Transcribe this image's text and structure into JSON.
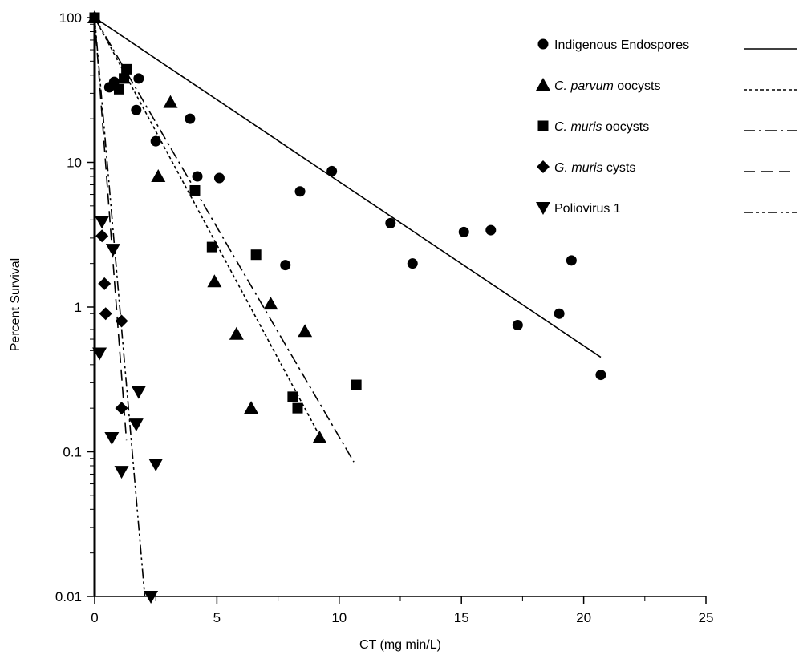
{
  "chart_data": {
    "type": "scatter",
    "xlabel": "CT (mg min/L)",
    "ylabel": "Percent Survival",
    "xlim": [
      0,
      25
    ],
    "ylim": [
      0.01,
      100
    ],
    "yscale": "log",
    "xticks": [
      "0",
      "5",
      "10",
      "15",
      "20",
      "25"
    ],
    "yticks": [
      "0.01",
      "0.1",
      "1",
      "10",
      "100"
    ],
    "legend_position": "top-right",
    "series": [
      {
        "name": "Indigenous Endospores",
        "name_parts": [
          {
            "t": "Indigenous Endospores",
            "i": false
          }
        ],
        "marker": "circle",
        "line_style": "solid",
        "points": [
          [
            0.6,
            33
          ],
          [
            0.8,
            36
          ],
          [
            1.7,
            23
          ],
          [
            1.8,
            38
          ],
          [
            2.5,
            14
          ],
          [
            3.9,
            20
          ],
          [
            4.2,
            8
          ],
          [
            5.1,
            7.8
          ],
          [
            8.4,
            6.3
          ],
          [
            9.7,
            8.7
          ],
          [
            7.8,
            1.95
          ],
          [
            12.1,
            3.8
          ],
          [
            13,
            2
          ],
          [
            15.1,
            3.3
          ],
          [
            16.2,
            3.4
          ],
          [
            17.3,
            0.75
          ],
          [
            19,
            0.9
          ],
          [
            19.5,
            2.1
          ],
          [
            20.7,
            0.34
          ]
        ],
        "fit_line": [
          [
            0,
            100
          ],
          [
            20.7,
            0.45
          ]
        ]
      },
      {
        "name": "C. parvum oocysts",
        "name_parts": [
          {
            "t": "C. parvum",
            "i": true
          },
          {
            "t": " oocysts",
            "i": false
          }
        ],
        "marker": "triangle-up",
        "line_style": "dotted",
        "points": [
          [
            0,
            100
          ],
          [
            3.1,
            26
          ],
          [
            2.6,
            8
          ],
          [
            4.9,
            1.5
          ],
          [
            5.8,
            0.65
          ],
          [
            6.4,
            0.2
          ],
          [
            7.2,
            1.05
          ],
          [
            8.6,
            0.68
          ],
          [
            9.2,
            0.125
          ]
        ],
        "fit_line": [
          [
            0,
            100
          ],
          [
            9.3,
            0.12
          ]
        ]
      },
      {
        "name": "C. muris oocysts",
        "name_parts": [
          {
            "t": "C. muris",
            "i": true
          },
          {
            "t": " oocysts",
            "i": false
          }
        ],
        "marker": "square",
        "line_style": "dash-dot",
        "points": [
          [
            0,
            100
          ],
          [
            1,
            32
          ],
          [
            1.2,
            38
          ],
          [
            1.3,
            44
          ],
          [
            4.1,
            6.4
          ],
          [
            4.8,
            2.6
          ],
          [
            6.6,
            2.3
          ],
          [
            8.1,
            0.24
          ],
          [
            8.3,
            0.2
          ],
          [
            10.7,
            0.29
          ]
        ],
        "fit_line": [
          [
            0,
            100
          ],
          [
            10.6,
            0.085
          ]
        ]
      },
      {
        "name": "G. muris cysts",
        "name_parts": [
          {
            "t": "G. muris",
            "i": true
          },
          {
            "t": " cysts",
            "i": false
          }
        ],
        "marker": "diamond",
        "line_style": "dashed",
        "points": [
          [
            0.3,
            3.1
          ],
          [
            0.4,
            1.45
          ],
          [
            0.45,
            0.9
          ],
          [
            1.1,
            0.8
          ],
          [
            1.1,
            0.2
          ]
        ],
        "fit_line": [
          [
            0,
            100
          ],
          [
            1.3,
            0.12
          ]
        ]
      },
      {
        "name": "Poliovirus 1",
        "name_parts": [
          {
            "t": "Poliovirus 1",
            "i": false
          }
        ],
        "marker": "triangle-down",
        "line_style": "dash-dot-dot",
        "points": [
          [
            0.2,
            0.48
          ],
          [
            0.3,
            3.9
          ],
          [
            0.7,
            0.125
          ],
          [
            0.75,
            2.5
          ],
          [
            1.1,
            0.073
          ],
          [
            1.7,
            0.155
          ],
          [
            1.8,
            0.26
          ],
          [
            2.3,
            0.01
          ],
          [
            2.5,
            0.082
          ]
        ],
        "fit_line": [
          [
            0,
            100
          ],
          [
            2.05,
            0.01
          ]
        ]
      }
    ]
  }
}
